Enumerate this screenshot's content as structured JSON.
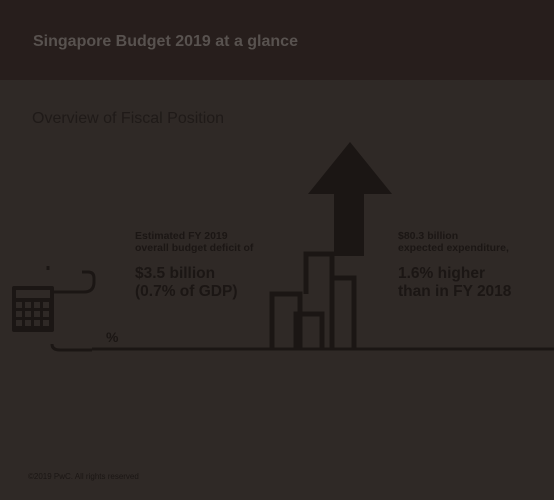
{
  "header": {
    "title": "Singapore Budget 2019 at a glance"
  },
  "section": {
    "title": "Overview of Fiscal Position"
  },
  "deficit": {
    "line1": "Estimated FY 2019",
    "line2": "overall budget deficit of",
    "value_line1": "$3.5 billion",
    "value_line2": "(0.7% of GDP)"
  },
  "expenditure": {
    "line1": "$80.3 billion",
    "line2": "expected expenditure,",
    "value_line1": "1.6% higher",
    "value_line2": "than in FY 2018"
  },
  "percent_symbol": "%",
  "footer": {
    "copyright": "©2019 PwC. All rights reserved"
  },
  "icons": [
    "calculator-icon",
    "up-arrow-icon",
    "growth-bars-icon"
  ],
  "colors": {
    "background": "#2f2926",
    "header": "#271e1c",
    "ink": "#1b1614"
  }
}
